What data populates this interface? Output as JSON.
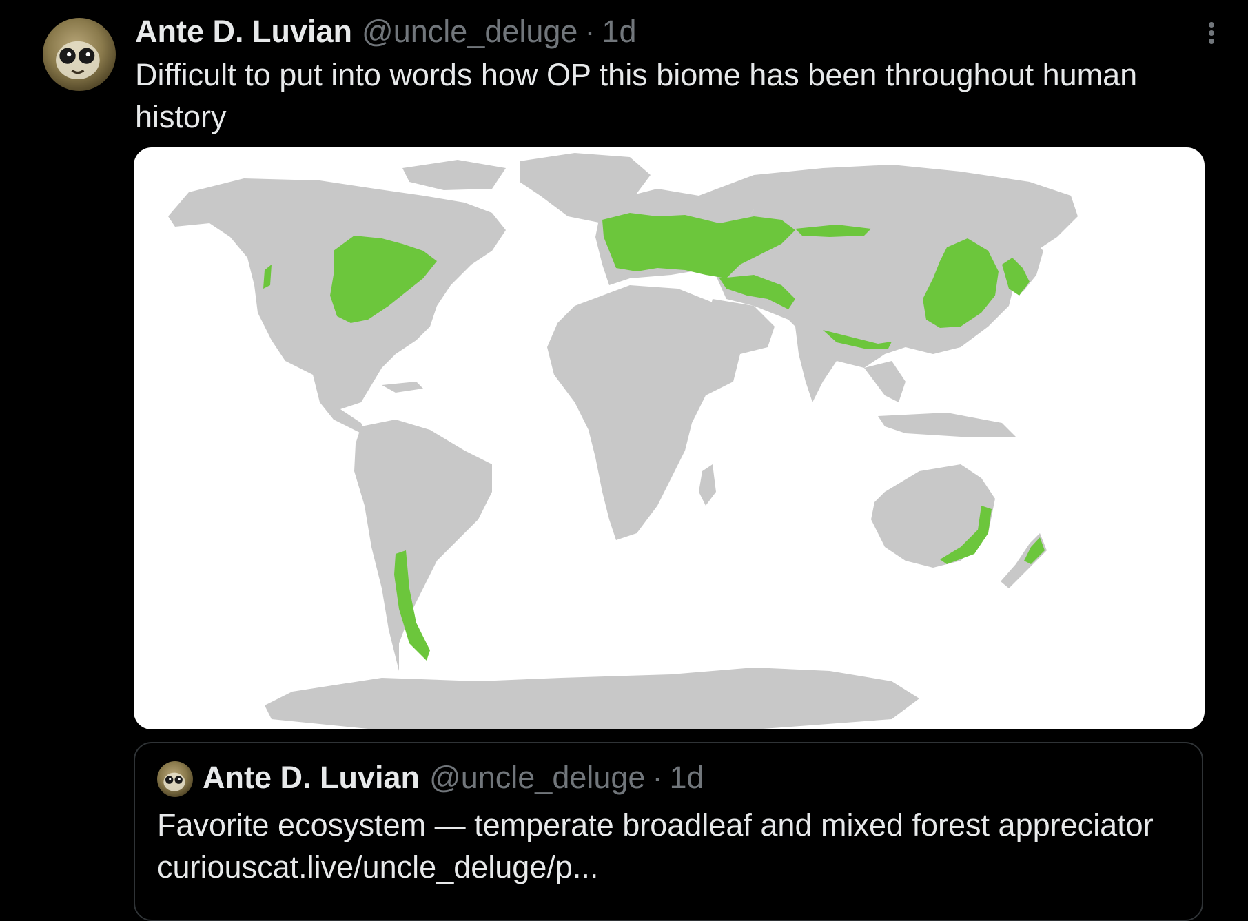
{
  "tweet": {
    "author_name": "Ante D. Luvian",
    "author_handle": "@uncle_deluge",
    "separator": "·",
    "time": "1d",
    "text": "Difficult to put into words how OP this biome has been throughout human history"
  },
  "quoted_tweet": {
    "author_name": "Ante D. Luvian",
    "author_handle": "@uncle_deluge",
    "separator": "·",
    "time": "1d",
    "text": "Favorite ecosystem — temperate broadleaf and mixed forest appreciator curiouscat.live/uncle_deluge/p..."
  },
  "icons": {
    "avatar": "avatar-image",
    "more": "more-options-icon"
  },
  "colors": {
    "background": "#000000",
    "text": "#e7e9ea",
    "muted": "#71767b",
    "border": "#2f3336",
    "map_land": "#c8c8c8",
    "map_forest": "#6cc63c",
    "map_ocean": "#ffffff"
  }
}
